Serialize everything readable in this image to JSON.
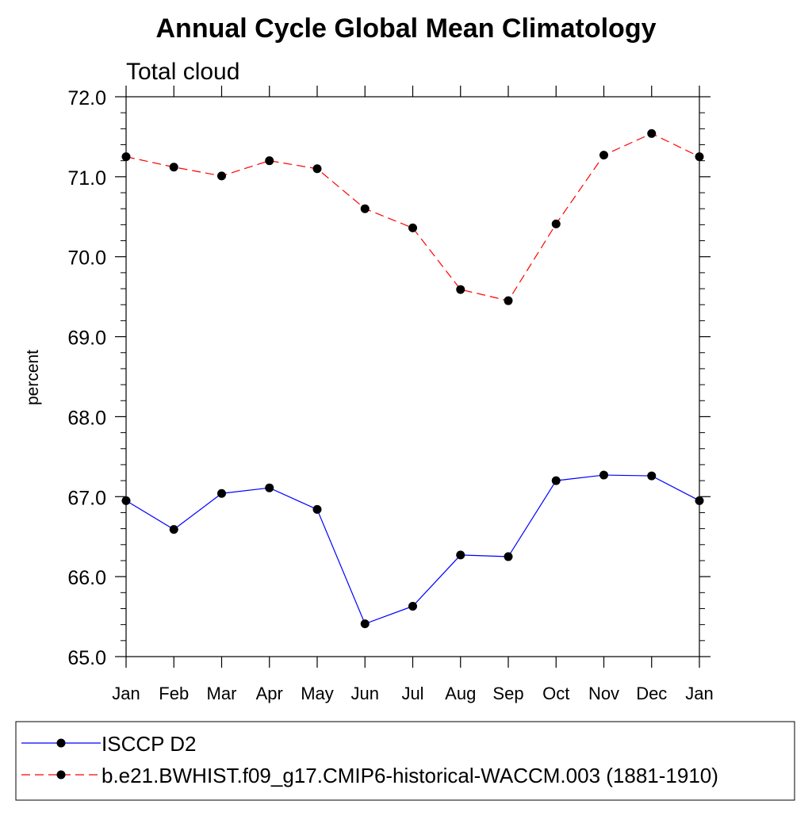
{
  "chart_data": {
    "type": "line",
    "title": "Annual Cycle Global Mean Climatology",
    "subtitle": "Total cloud",
    "xlabel": "",
    "ylabel": "percent",
    "categories": [
      "Jan",
      "Feb",
      "Mar",
      "Apr",
      "May",
      "Jun",
      "Jul",
      "Aug",
      "Sep",
      "Oct",
      "Nov",
      "Dec",
      "Jan"
    ],
    "ylim": [
      65.0,
      72.0
    ],
    "yticks": [
      "65.0",
      "66.0",
      "67.0",
      "68.0",
      "69.0",
      "70.0",
      "71.0",
      "72.0"
    ],
    "grid": false,
    "legend_position": "bottom",
    "series": [
      {
        "name": "ISCCP D2",
        "line_style": "solid",
        "color": "#0000ff",
        "marker_color": "#000000",
        "values": [
          66.95,
          66.59,
          67.04,
          67.11,
          66.84,
          65.41,
          65.63,
          66.27,
          66.25,
          67.2,
          67.27,
          67.26,
          66.95
        ]
      },
      {
        "name": "b.e21.BWHIST.f09_g17.CMIP6-historical-WACCM.003 (1881-1910)",
        "line_style": "dashed",
        "color": "#ff0000",
        "marker_color": "#000000",
        "values": [
          71.25,
          71.12,
          71.01,
          71.2,
          71.1,
          70.6,
          70.36,
          69.59,
          69.45,
          70.41,
          71.27,
          71.54,
          71.25
        ]
      }
    ]
  }
}
